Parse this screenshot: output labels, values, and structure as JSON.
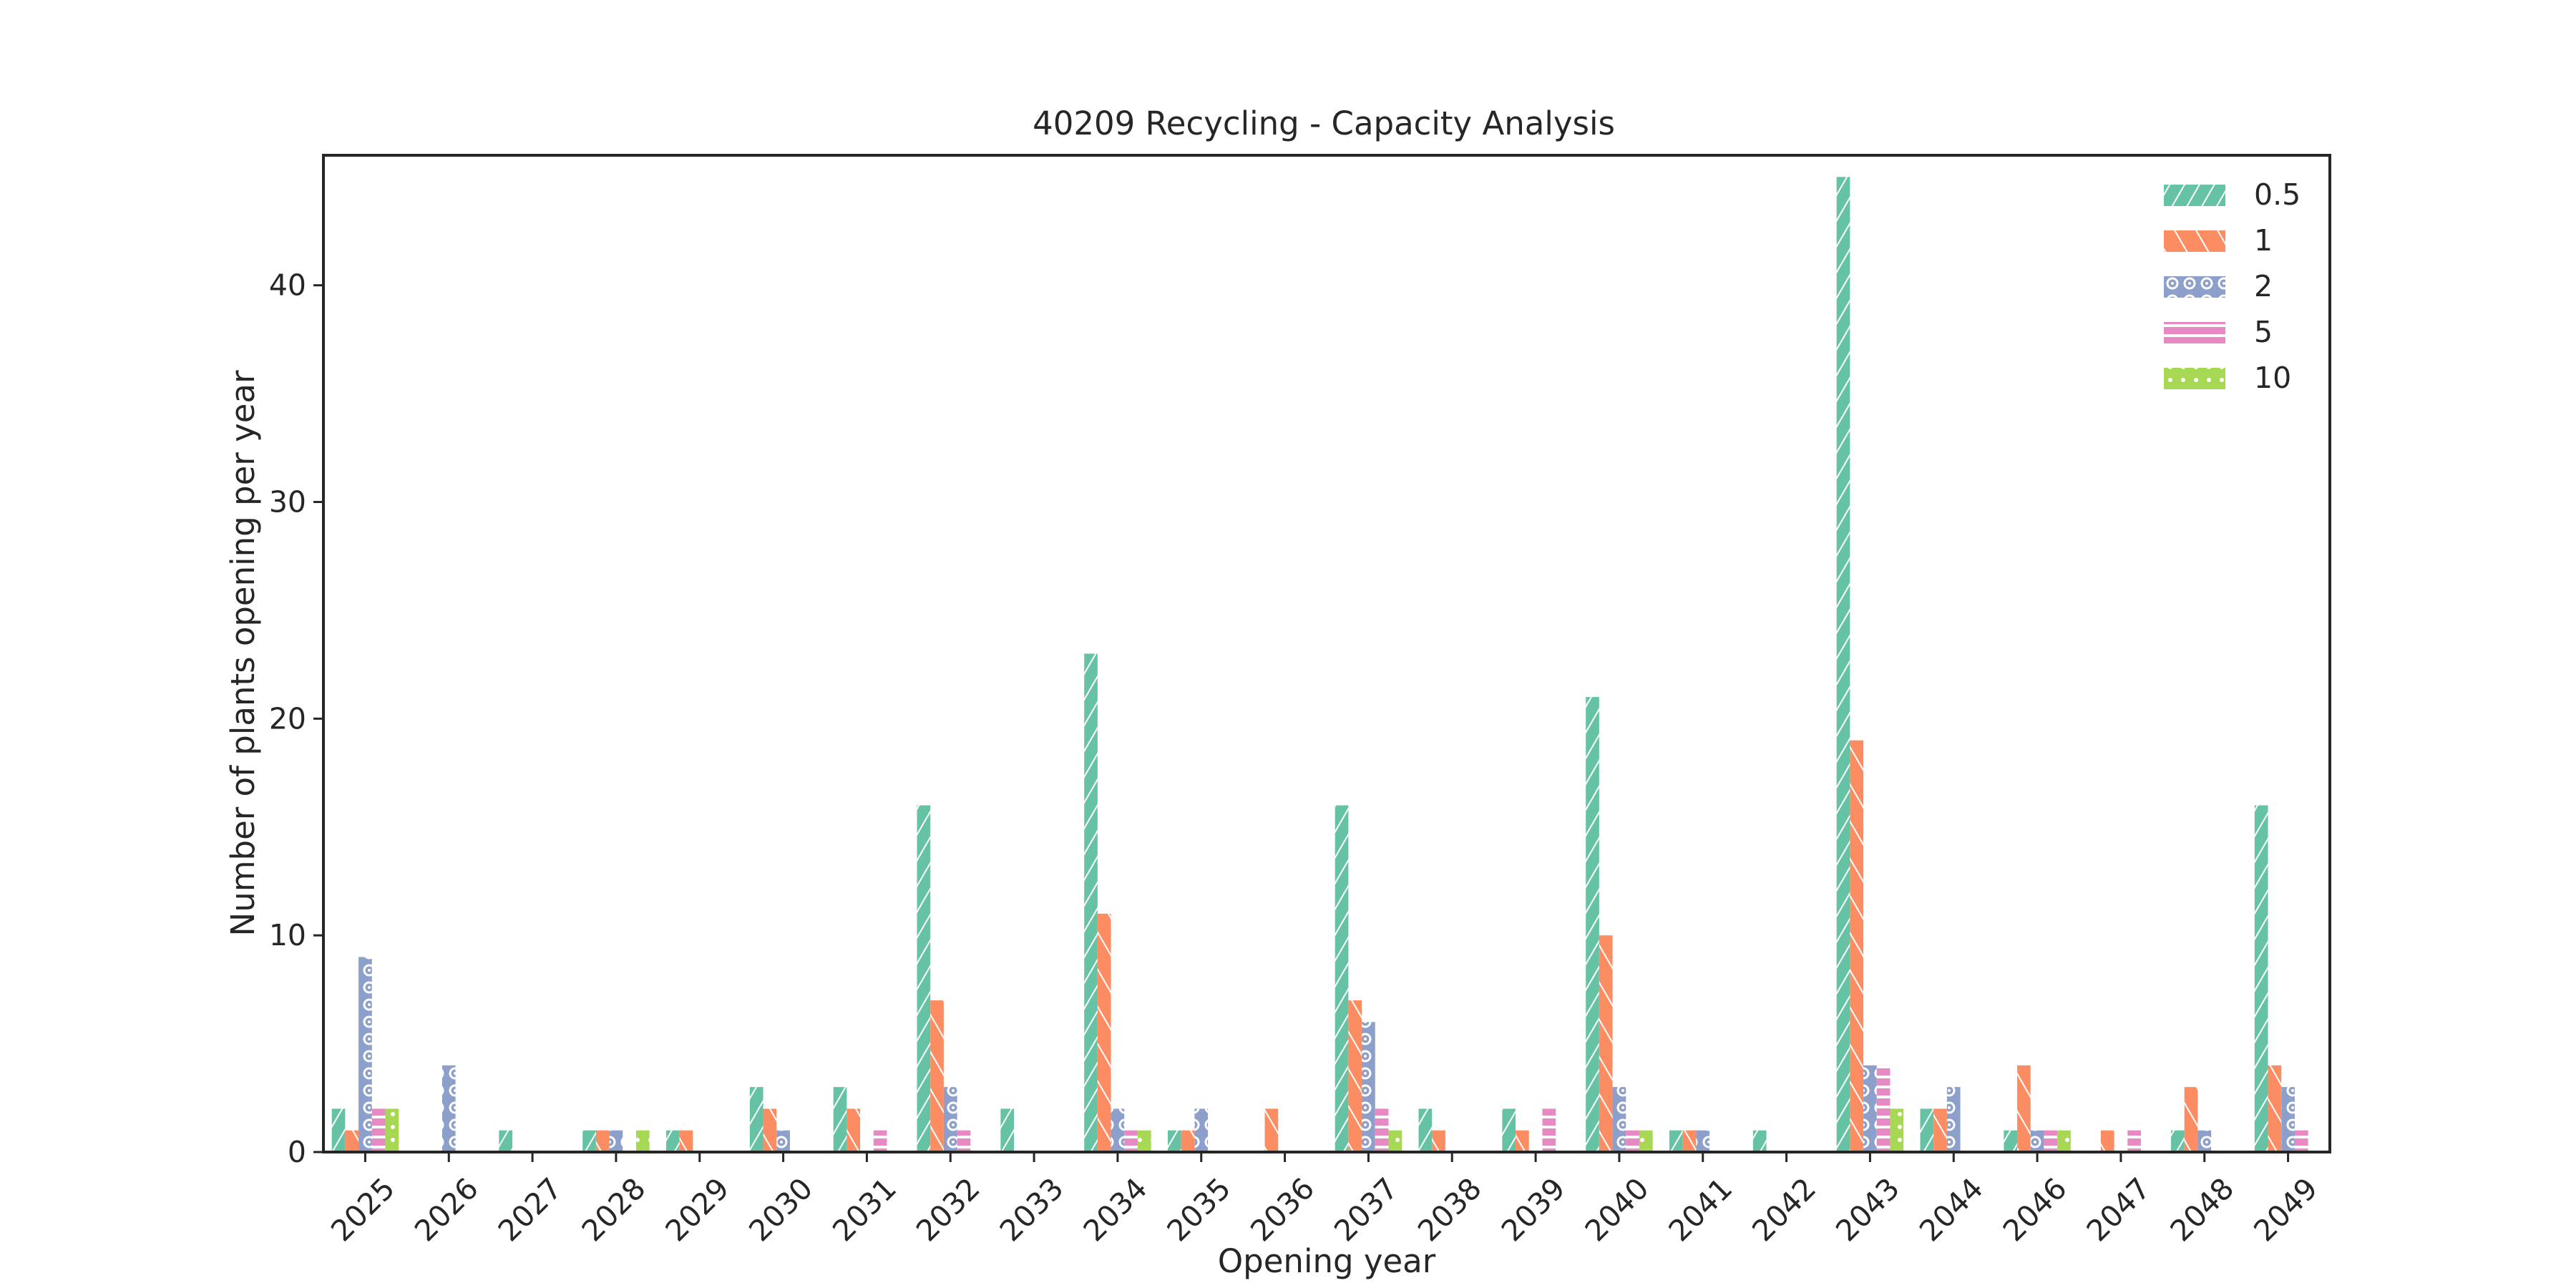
{
  "chart_data": {
    "type": "bar",
    "title": "40209 Recycling - Capacity Analysis",
    "xlabel": "Opening year",
    "ylabel": "Number of plants opening per year",
    "ylim": [
      0,
      46
    ],
    "yticks": [
      0,
      10,
      20,
      30,
      40
    ],
    "grid": false,
    "legend_position": "top-right",
    "categories": [
      "2025",
      "2026",
      "2027",
      "2028",
      "2029",
      "2030",
      "2031",
      "2032",
      "2033",
      "2034",
      "2035",
      "2036",
      "2037",
      "2038",
      "2039",
      "2040",
      "2041",
      "2042",
      "2043",
      "2044",
      "2046",
      "2047",
      "2048",
      "2049"
    ],
    "series": [
      {
        "name": "0.5",
        "color": "#66c2a5",
        "pattern": "diagonal-hatch",
        "values": [
          2,
          0,
          1,
          1,
          1,
          3,
          3,
          16,
          2,
          23,
          1,
          0,
          16,
          2,
          2,
          21,
          1,
          1,
          45,
          2,
          1,
          0,
          1,
          16
        ]
      },
      {
        "name": "1",
        "color": "#fc8d62",
        "pattern": "back-diagonal-hatch",
        "values": [
          1,
          0,
          0,
          1,
          1,
          2,
          2,
          7,
          0,
          11,
          1,
          2,
          7,
          1,
          1,
          10,
          1,
          0,
          19,
          2,
          4,
          1,
          3,
          4
        ]
      },
      {
        "name": "2",
        "color": "#8da0cb",
        "pattern": "circles",
        "values": [
          9,
          4,
          0,
          1,
          0,
          1,
          0,
          3,
          0,
          2,
          2,
          0,
          6,
          0,
          0,
          3,
          1,
          0,
          4,
          3,
          1,
          0,
          1,
          3
        ]
      },
      {
        "name": "5",
        "color": "#e78ac3",
        "pattern": "horizontal-hatch",
        "values": [
          2,
          0,
          0,
          0,
          0,
          0,
          1,
          1,
          0,
          1,
          0,
          0,
          2,
          0,
          2,
          1,
          0,
          0,
          4,
          0,
          1,
          1,
          0,
          1
        ]
      },
      {
        "name": "10",
        "color": "#a6d854",
        "pattern": "dots",
        "values": [
          2,
          0,
          0,
          1,
          0,
          0,
          0,
          0,
          0,
          1,
          0,
          0,
          1,
          0,
          0,
          1,
          0,
          0,
          2,
          0,
          1,
          0,
          0,
          0
        ]
      }
    ]
  }
}
